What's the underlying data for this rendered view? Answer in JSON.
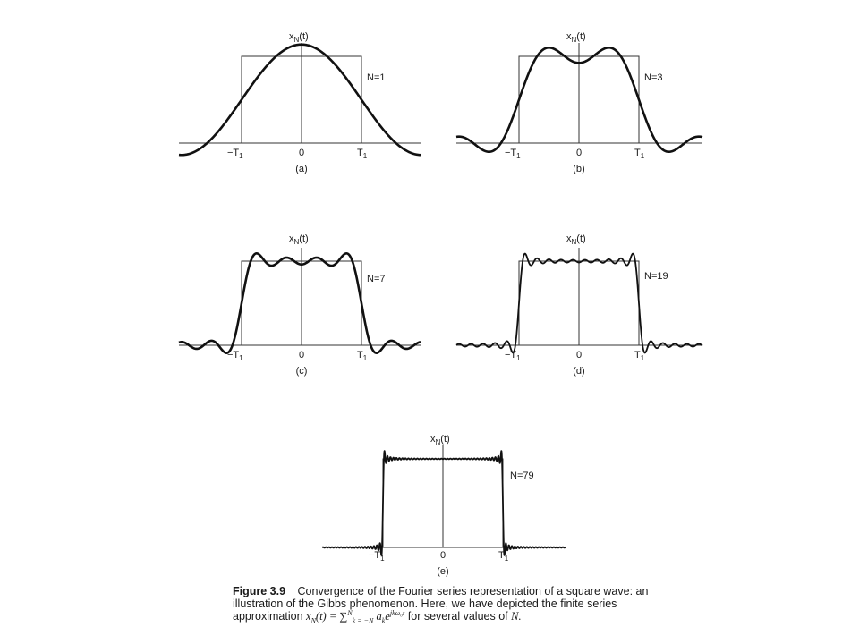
{
  "panels": [
    {
      "id": "a",
      "n": 1,
      "n_label": "N=1",
      "ylabel": "x",
      "ylabel_sub": "N",
      "ylabel_tail": "(t)",
      "neg_tick": "−T",
      "neg_tick_sub": "1",
      "zero_tick": "0",
      "pos_tick": "T",
      "pos_tick_sub": "1",
      "sublabel": "(a)"
    },
    {
      "id": "b",
      "n": 3,
      "n_label": "N=3",
      "ylabel": "x",
      "ylabel_sub": "N",
      "ylabel_tail": "(t)",
      "neg_tick": "−T",
      "neg_tick_sub": "1",
      "zero_tick": "0",
      "pos_tick": "T",
      "pos_tick_sub": "1",
      "sublabel": "(b)"
    },
    {
      "id": "c",
      "n": 7,
      "n_label": "N=7",
      "ylabel": "x",
      "ylabel_sub": "N",
      "ylabel_tail": "(t)",
      "neg_tick": "−T",
      "neg_tick_sub": "1",
      "zero_tick": "0",
      "pos_tick": "T",
      "pos_tick_sub": "1",
      "sublabel": "(c)"
    },
    {
      "id": "d",
      "n": 19,
      "n_label": "N=19",
      "ylabel": "x",
      "ylabel_sub": "N",
      "ylabel_tail": "(t)",
      "neg_tick": "−T",
      "neg_tick_sub": "1",
      "zero_tick": "0",
      "pos_tick": "T",
      "pos_tick_sub": "1",
      "sublabel": "(d)"
    },
    {
      "id": "e",
      "n": 79,
      "n_label": "N=79",
      "ylabel": "x",
      "ylabel_sub": "N",
      "ylabel_tail": "(t)",
      "neg_tick": "−T",
      "neg_tick_sub": "1",
      "zero_tick": "0",
      "pos_tick": "T",
      "pos_tick_sub": "1",
      "sublabel": "(e)"
    }
  ],
  "caption": {
    "label": "Figure 3.9",
    "text_before": "Convergence of the Fourier series representation of a square wave: an illustration of the Gibbs phenomenon. Here, we have depicted the finite series approximation",
    "formula_lhs": "x",
    "formula_lhs_sub": "N",
    "formula_lhs_tail": "(t) = ∑",
    "formula_sum_sub": "k = −N",
    "formula_sum_sup": "N",
    "formula_term": "a",
    "formula_term_sub": "k",
    "formula_exp_base": "e",
    "formula_exp": "jkω₀t",
    "text_after": "for several values of",
    "text_end": "N."
  }
}
